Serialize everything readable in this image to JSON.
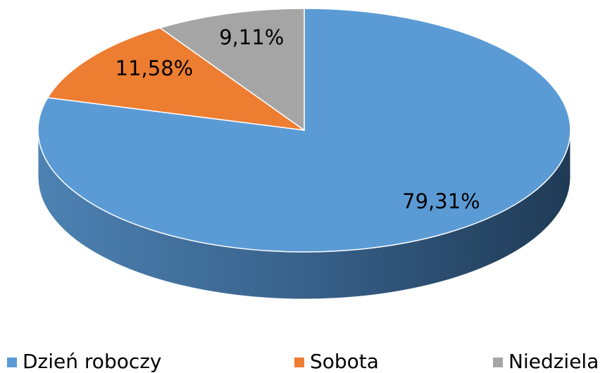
{
  "chart_data": {
    "type": "pie",
    "style": "3d",
    "categories": [
      "Dzień roboczy",
      "Sobota",
      "Niedziela"
    ],
    "values": [
      79.31,
      11.58,
      9.11
    ],
    "value_labels": [
      "79,31%",
      "11,58%",
      "9,11%"
    ],
    "colors": [
      "#5b9bd5",
      "#ed7d31",
      "#a5a5a5"
    ],
    "legend": "bottom"
  }
}
